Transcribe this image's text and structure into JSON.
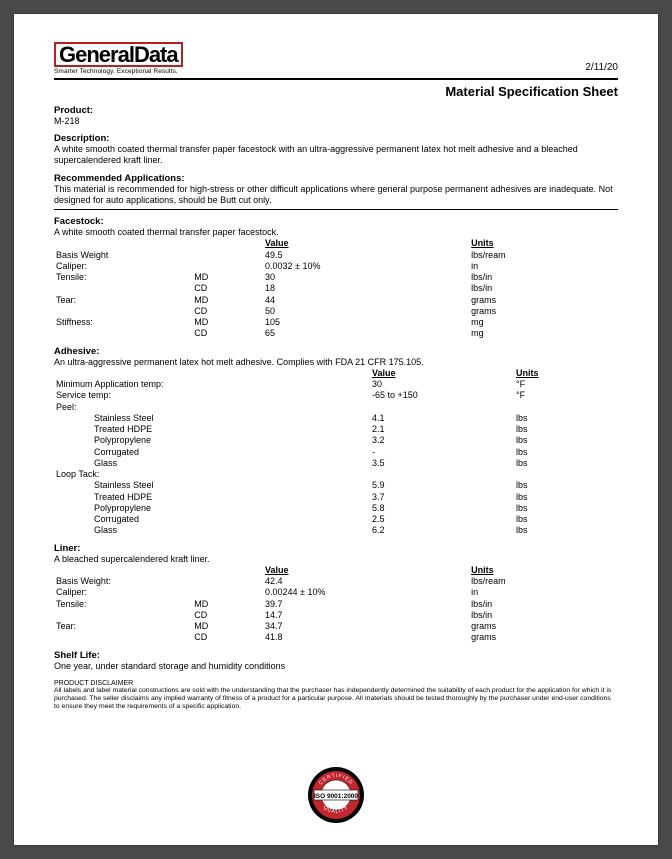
{
  "header": {
    "logo_general": "General",
    "logo_data": "Data",
    "tagline": "Smarter Technology. Exceptional Results.",
    "date": "2/11/20",
    "sheet_title": "Material Specification Sheet"
  },
  "product": {
    "label": "Product:",
    "value": "M-218"
  },
  "description": {
    "label": "Description:",
    "text": "A white smooth coated thermal transfer paper facestock with an ultra-aggressive permanent latex hot melt adhesive and a bleached supercalendered kraft liner."
  },
  "applications": {
    "label": "Recommended Applications:",
    "text": "This material is recommended for high-stress or other difficult applications where general purpose permanent adhesives are inadequate. Not designed for auto applications, should be Butt cut only."
  },
  "col_value": "Value",
  "col_units": "Units",
  "facestock": {
    "label": "Facestock:",
    "desc": "A white smooth coated thermal transfer paper facestock.",
    "rows": [
      {
        "p": "Basis Weight",
        "d": "",
        "v": "49.5",
        "u": "lbs/ream"
      },
      {
        "p": "Caliper:",
        "d": "",
        "v": "0.0032 ± 10%",
        "u": "in"
      },
      {
        "p": "Tensile:",
        "d": "MD",
        "v": "30",
        "u": "lbs/in"
      },
      {
        "p": "",
        "d": "CD",
        "v": "18",
        "u": "lbs/in"
      },
      {
        "p": "Tear:",
        "d": "MD",
        "v": "44",
        "u": "grams"
      },
      {
        "p": "",
        "d": "CD",
        "v": "50",
        "u": "grams"
      },
      {
        "p": "Stiffness:",
        "d": "MD",
        "v": "105",
        "u": "mg"
      },
      {
        "p": "",
        "d": "CD",
        "v": "65",
        "u": "mg"
      }
    ]
  },
  "adhesive": {
    "label": "Adhesive:",
    "desc": "An ultra-aggressive permanent latex hot melt adhesive. Complies with FDA 21 CFR 175.105.",
    "top": [
      {
        "p": "Minimum Application temp:",
        "v": "30",
        "u": "°F"
      },
      {
        "p": "Service temp:",
        "v": "-65 to +150",
        "u": "°F"
      }
    ],
    "peel_label": "Peel:",
    "peel": [
      {
        "p": "Stainless Steel",
        "v": "4.1",
        "u": "lbs"
      },
      {
        "p": "Treated HDPE",
        "v": "2.1",
        "u": "lbs"
      },
      {
        "p": "Polypropylene",
        "v": "3.2",
        "u": "lbs"
      },
      {
        "p": "Corrugated",
        "v": "-",
        "u": "lbs"
      },
      {
        "p": "Glass",
        "v": "3.5",
        "u": "lbs"
      }
    ],
    "loop_label": "Loop Tack:",
    "loop": [
      {
        "p": "Stainless Steel",
        "v": "5.9",
        "u": "lbs"
      },
      {
        "p": "Treated HDPE",
        "v": "3.7",
        "u": "lbs"
      },
      {
        "p": "Polypropylene",
        "v": "5.8",
        "u": "lbs"
      },
      {
        "p": "Corrugated",
        "v": "2.5",
        "u": "lbs"
      },
      {
        "p": "Glass",
        "v": "6.2",
        "u": "lbs"
      }
    ]
  },
  "liner": {
    "label": "Liner:",
    "desc": "A bleached supercalendered kraft liner.",
    "rows": [
      {
        "p": "Basis Weight:",
        "d": "",
        "v": "42.4",
        "u": "lbs/ream"
      },
      {
        "p": "Caliper:",
        "d": "",
        "v": "0.00244 ± 10%",
        "u": "in"
      },
      {
        "p": "Tensile:",
        "d": "MD",
        "v": "39.7",
        "u": "lbs/in"
      },
      {
        "p": "",
        "d": "CD",
        "v": "14.7",
        "u": "lbs/in"
      },
      {
        "p": "Tear:",
        "d": "MD",
        "v": "34.7",
        "u": "grams"
      },
      {
        "p": "",
        "d": "CD",
        "v": "41.8",
        "u": "grams"
      }
    ]
  },
  "shelf": {
    "label": "Shelf Life:",
    "text": "One year, under standard storage and humidity conditions"
  },
  "disclaimer": {
    "head": "PRODUCT DISCLAIMER",
    "text": "All labels and label material constructions are sold with the understanding that the purchaser has independently determined the suitability of each product for the application for which it is purchased. The seller disclaims any implied warranty of fitness of a product for a particular purpose. All materials should be tested thoroughly by the purchaser under end-user conditions to ensure they meet the requirements of a specific application."
  },
  "seal": {
    "certified": "CERTIFIED",
    "iso": "ISO 9001:2000",
    "quality": "QUALITY"
  }
}
